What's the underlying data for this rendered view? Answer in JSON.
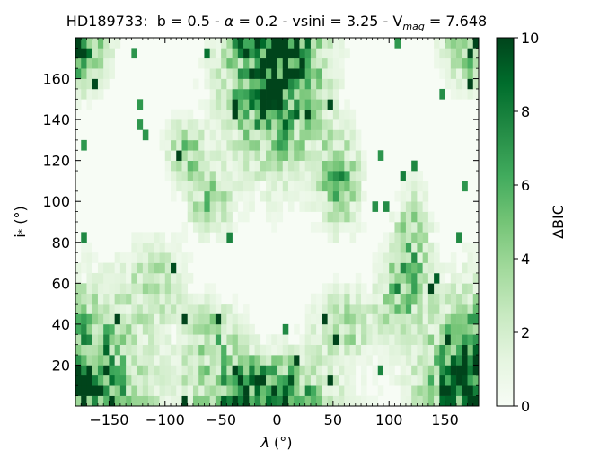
{
  "chart_data": {
    "type": "heatmap",
    "title": {
      "star": "HD189733:",
      "b_part": "b = 0.5 - ",
      "alpha_symbol": "α",
      "alpha_part": " = 0.2 - vsini = 3.25 - V",
      "mag_subscript": "mag",
      "mag_part": " = 7.648"
    },
    "xlabel": {
      "symbol": "λ",
      "unit": " (°)"
    },
    "ylabel": {
      "symbol": "i",
      "subscript": "*",
      "unit": " (°)"
    },
    "colorbar_label": "ΔBIC",
    "x_range": [
      -180,
      180
    ],
    "y_range": [
      0,
      180
    ],
    "x_ticks": [
      -150,
      -100,
      -50,
      0,
      50,
      100,
      150
    ],
    "x_tick_labels": [
      "−150",
      "−100",
      "−50",
      "0",
      "50",
      "100",
      "150"
    ],
    "y_ticks": [
      20,
      40,
      60,
      80,
      100,
      120,
      140,
      160
    ],
    "y_tick_labels": [
      "20",
      "40",
      "60",
      "80",
      "100",
      "120",
      "140",
      "160"
    ],
    "color_range": [
      0,
      10
    ],
    "colorbar_ticks": [
      0,
      2,
      4,
      6,
      8,
      10
    ],
    "colorbar_tick_labels": [
      "0",
      "2",
      "4",
      "6",
      "8",
      "10"
    ],
    "colormap": "Greens",
    "colors": [
      "#f7fcf5",
      "#e5f5e0",
      "#c7e9c0",
      "#a1d99b",
      "#74c476",
      "#41ab5d",
      "#238b45",
      "#006d2c",
      "#00441b"
    ],
    "grid": {
      "nx": 72,
      "ny": 36
    },
    "high_regions": [
      {
        "x": -180,
        "y": 0,
        "sx": 50,
        "sy": 45,
        "peak": 11
      },
      {
        "x": 180,
        "y": 0,
        "sx": 45,
        "sy": 45,
        "peak": 11
      },
      {
        "x": -3,
        "y": 170,
        "sx": 38,
        "sy": 45,
        "peak": 11
      },
      {
        "x": -180,
        "y": 180,
        "sx": 25,
        "sy": 22,
        "peak": 8
      },
      {
        "x": 180,
        "y": 180,
        "sx": 25,
        "sy": 20,
        "peak": 8
      },
      {
        "x": -15,
        "y": 5,
        "sx": 55,
        "sy": 18,
        "peak": 9
      },
      {
        "x": 55,
        "y": 110,
        "sx": 18,
        "sy": 22,
        "peak": 5
      },
      {
        "x": -80,
        "y": 125,
        "sx": 18,
        "sy": 15,
        "peak": 4
      },
      {
        "x": -60,
        "y": 100,
        "sx": 18,
        "sy": 15,
        "peak": 4
      },
      {
        "x": 120,
        "y": 80,
        "sx": 15,
        "sy": 25,
        "peak": 4
      },
      {
        "x": 110,
        "y": 55,
        "sx": 20,
        "sy": 20,
        "peak": 4
      },
      {
        "x": -110,
        "y": 60,
        "sx": 25,
        "sy": 20,
        "peak": 3
      },
      {
        "x": 60,
        "y": 40,
        "sx": 25,
        "sy": 15,
        "peak": 4
      },
      {
        "x": -60,
        "y": 35,
        "sx": 25,
        "sy": 15,
        "peak": 4
      }
    ]
  }
}
